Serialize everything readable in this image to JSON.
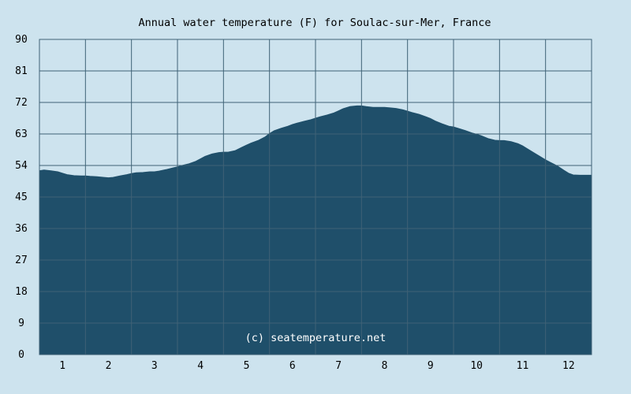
{
  "chart_data": {
    "type": "area",
    "title": "Annual water temperature (F) for Soulac-sur-Mer, France",
    "watermark": "(c) seatemperature.net",
    "xlabel": "",
    "ylabel": "",
    "categories": [
      "1",
      "2",
      "3",
      "4",
      "5",
      "6",
      "7",
      "8",
      "9",
      "10",
      "11",
      "12"
    ],
    "y_ticks": [
      "0",
      "9",
      "18",
      "27",
      "36",
      "45",
      "54",
      "63",
      "72",
      "81",
      "90"
    ],
    "ylim": [
      0,
      90
    ],
    "xlim": [
      0.5,
      12.5
    ],
    "grid": true,
    "colors": {
      "background": "#cde3ee",
      "fill": "#1f4f6a",
      "grid": "#3f6276"
    },
    "series": [
      {
        "x": [
          0.5,
          0.6,
          0.75,
          0.9,
          1.0,
          1.1,
          1.25,
          1.4,
          1.5,
          1.6,
          1.75,
          1.9,
          2.0,
          2.1,
          2.25,
          2.4,
          2.5,
          2.6,
          2.75,
          2.9,
          3.0,
          3.1,
          3.25,
          3.4,
          3.5,
          3.6,
          3.75,
          3.9,
          4.0,
          4.1,
          4.25,
          4.4,
          4.5,
          4.6,
          4.75,
          4.9,
          5.0,
          5.1,
          5.25,
          5.4,
          5.5,
          5.6,
          5.75,
          5.9,
          6.0,
          6.1,
          6.25,
          6.4,
          6.5,
          6.6,
          6.75,
          6.9,
          7.0,
          7.1,
          7.25,
          7.4,
          7.5,
          7.6,
          7.75,
          7.9,
          8.0,
          8.1,
          8.25,
          8.4,
          8.5,
          8.6,
          8.75,
          8.9,
          9.0,
          9.1,
          9.25,
          9.4,
          9.5,
          9.6,
          9.75,
          9.9,
          10.0,
          10.1,
          10.25,
          10.4,
          10.5,
          10.6,
          10.75,
          10.9,
          11.0,
          11.1,
          11.25,
          11.4,
          11.5,
          11.6,
          11.75,
          11.9,
          12.0,
          12.1,
          12.25,
          12.4,
          12.5
        ],
        "values": [
          52.5,
          52.7,
          52.5,
          52.2,
          51.8,
          51.4,
          51.1,
          51.0,
          51.0,
          50.9,
          50.8,
          50.6,
          50.5,
          50.6,
          51.0,
          51.4,
          51.7,
          51.9,
          52.0,
          52.2,
          52.2,
          52.4,
          52.8,
          53.3,
          53.6,
          54.0,
          54.5,
          55.2,
          55.9,
          56.6,
          57.3,
          57.7,
          57.8,
          57.8,
          58.2,
          59.2,
          59.8,
          60.4,
          61.1,
          62.1,
          63.1,
          63.9,
          64.6,
          65.2,
          65.7,
          66.1,
          66.6,
          67.1,
          67.5,
          67.9,
          68.4,
          69.0,
          69.6,
          70.2,
          70.8,
          71.0,
          71.0,
          70.8,
          70.6,
          70.6,
          70.6,
          70.5,
          70.3,
          69.9,
          69.5,
          69.1,
          68.6,
          67.9,
          67.4,
          66.7,
          65.9,
          65.2,
          65.0,
          64.6,
          64.0,
          63.3,
          62.9,
          62.5,
          61.7,
          61.2,
          61.1,
          61.1,
          60.8,
          60.2,
          59.6,
          58.8,
          57.6,
          56.4,
          55.6,
          54.9,
          53.9,
          52.6,
          51.8,
          51.3,
          51.2,
          51.2,
          51.2
        ]
      }
    ]
  }
}
